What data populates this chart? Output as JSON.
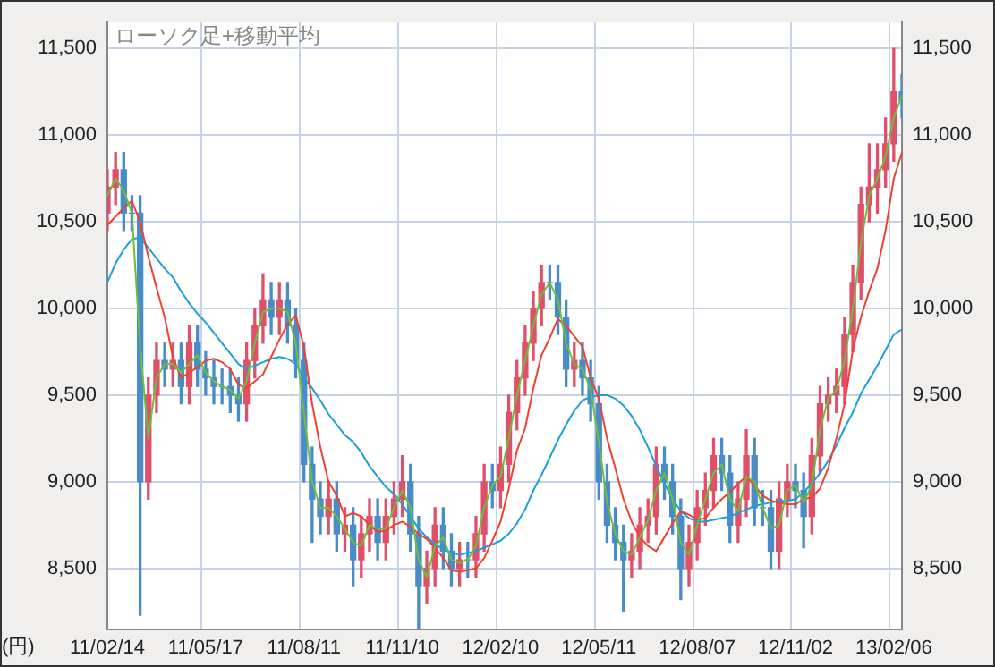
{
  "chart_data": {
    "type": "candlestick",
    "title": "ローソク足+移動平均",
    "ylabel": "(円)",
    "grid": true,
    "categories": [
      "11/02/14",
      null,
      null,
      null,
      null,
      null,
      null,
      null,
      null,
      null,
      null,
      null,
      "11/05/17",
      null,
      null,
      null,
      null,
      null,
      null,
      null,
      null,
      null,
      null,
      null,
      "11/08/11",
      null,
      null,
      null,
      null,
      null,
      null,
      null,
      null,
      null,
      null,
      null,
      "11/11/10",
      null,
      null,
      null,
      null,
      null,
      null,
      null,
      null,
      null,
      null,
      null,
      "12/02/10",
      null,
      null,
      null,
      null,
      null,
      null,
      null,
      null,
      null,
      null,
      null,
      "12/05/11",
      null,
      null,
      null,
      null,
      null,
      null,
      null,
      null,
      null,
      null,
      null,
      "12/08/07",
      null,
      null,
      null,
      null,
      null,
      null,
      null,
      null,
      null,
      null,
      null,
      "12/11/02",
      null,
      null,
      null,
      null,
      null,
      null,
      null,
      null,
      null,
      null,
      null,
      "13/02/06",
      null
    ],
    "ohlc": [
      [
        10550,
        10800,
        10450,
        10700
      ],
      [
        10700,
        10900,
        10600,
        10800
      ],
      [
        10800,
        10900,
        10450,
        10550
      ],
      [
        10550,
        10650,
        10450,
        10550
      ],
      [
        10550,
        10650,
        8230,
        9000
      ],
      [
        9000,
        9600,
        8900,
        9500
      ],
      [
        9500,
        9800,
        9400,
        9700
      ],
      [
        9700,
        9800,
        9550,
        9650
      ],
      [
        9650,
        9800,
        9550,
        9700
      ],
      [
        9700,
        9800,
        9450,
        9550
      ],
      [
        9550,
        9900,
        9450,
        9800
      ],
      [
        9800,
        9900,
        9550,
        9650
      ],
      [
        9650,
        9750,
        9500,
        9600
      ],
      [
        9600,
        9700,
        9450,
        9550
      ],
      [
        9550,
        9650,
        9450,
        9550
      ],
      [
        9550,
        9650,
        9400,
        9500
      ],
      [
        9500,
        9600,
        9350,
        9450
      ],
      [
        9450,
        9800,
        9350,
        9700
      ],
      [
        9700,
        10000,
        9600,
        9900
      ],
      [
        9900,
        10200,
        9800,
        10050
      ],
      [
        10050,
        10150,
        9850,
        9950
      ],
      [
        9950,
        10150,
        9850,
        10050
      ],
      [
        10050,
        10150,
        9800,
        9900
      ],
      [
        9900,
        10000,
        9600,
        9700
      ],
      [
        9700,
        9800,
        9000,
        9100
      ],
      [
        9100,
        9200,
        8650,
        8900
      ],
      [
        8900,
        9000,
        8700,
        8800
      ],
      [
        8800,
        9000,
        8700,
        8900
      ],
      [
        8900,
        9000,
        8600,
        8700
      ],
      [
        8700,
        8850,
        8600,
        8750
      ],
      [
        8750,
        8850,
        8400,
        8550
      ],
      [
        8550,
        8800,
        8450,
        8700
      ],
      [
        8700,
        8900,
        8600,
        8800
      ],
      [
        8800,
        8900,
        8550,
        8650
      ],
      [
        8650,
        8900,
        8550,
        8800
      ],
      [
        8800,
        9000,
        8700,
        8900
      ],
      [
        8900,
        9150,
        8800,
        9000
      ],
      [
        9000,
        9100,
        8600,
        8700
      ],
      [
        8700,
        8800,
        8150,
        8400
      ],
      [
        8400,
        8600,
        8300,
        8500
      ],
      [
        8500,
        8850,
        8400,
        8750
      ],
      [
        8750,
        8850,
        8500,
        8600
      ],
      [
        8600,
        8700,
        8400,
        8500
      ],
      [
        8500,
        8650,
        8400,
        8550
      ],
      [
        8550,
        8650,
        8450,
        8550
      ],
      [
        8550,
        8800,
        8450,
        8700
      ],
      [
        8700,
        9100,
        8600,
        9000
      ],
      [
        9000,
        9100,
        8850,
        8950
      ],
      [
        8950,
        9200,
        8850,
        9100
      ],
      [
        9100,
        9500,
        9000,
        9400
      ],
      [
        9400,
        9700,
        9300,
        9600
      ],
      [
        9600,
        9900,
        9500,
        9800
      ],
      [
        9800,
        10100,
        9700,
        10000
      ],
      [
        10000,
        10250,
        9900,
        10150
      ],
      [
        10150,
        10250,
        10050,
        10150
      ],
      [
        10150,
        10250,
        9850,
        9950
      ],
      [
        9950,
        10050,
        9550,
        9650
      ],
      [
        9650,
        9800,
        9550,
        9700
      ],
      [
        9700,
        9800,
        9500,
        9600
      ],
      [
        9600,
        9700,
        9350,
        9450
      ],
      [
        9450,
        9550,
        8900,
        9000
      ],
      [
        9000,
        9100,
        8650,
        8750
      ],
      [
        8750,
        8850,
        8550,
        8650
      ],
      [
        8650,
        8750,
        8250,
        8550
      ],
      [
        8550,
        8700,
        8450,
        8600
      ],
      [
        8600,
        8850,
        8500,
        8750
      ],
      [
        8750,
        8900,
        8650,
        8800
      ],
      [
        8800,
        9200,
        8700,
        9100
      ],
      [
        9100,
        9200,
        8900,
        9000
      ],
      [
        9000,
        9100,
        8700,
        8800
      ],
      [
        8800,
        8900,
        8320,
        8500
      ],
      [
        8500,
        8750,
        8400,
        8650
      ],
      [
        8650,
        8950,
        8550,
        8850
      ],
      [
        8850,
        9050,
        8750,
        8950
      ],
      [
        8950,
        9250,
        8850,
        9150
      ],
      [
        9150,
        9250,
        8950,
        9050
      ],
      [
        9050,
        9150,
        8650,
        8750
      ],
      [
        8750,
        9000,
        8650,
        8900
      ],
      [
        8900,
        9300,
        8800,
        9150
      ],
      [
        9150,
        9250,
        8750,
        8850
      ],
      [
        8850,
        8950,
        8750,
        8850
      ],
      [
        8850,
        8950,
        8500,
        8600
      ],
      [
        8600,
        9000,
        8500,
        8900
      ],
      [
        8900,
        9100,
        8800,
        9000
      ],
      [
        9000,
        9100,
        8850,
        8950
      ],
      [
        8950,
        9050,
        8620,
        8800
      ],
      [
        8800,
        9250,
        8700,
        9150
      ],
      [
        9150,
        9550,
        9050,
        9450
      ],
      [
        9450,
        9600,
        9350,
        9500
      ],
      [
        9500,
        9650,
        9400,
        9550
      ],
      [
        9550,
        9950,
        9450,
        9850
      ],
      [
        9850,
        10250,
        9750,
        10150
      ],
      [
        10150,
        10700,
        10050,
        10600
      ],
      [
        10600,
        10950,
        10500,
        10700
      ],
      [
        10700,
        10950,
        10550,
        10800
      ],
      [
        10800,
        11100,
        10700,
        10950
      ],
      [
        10950,
        11500,
        10850,
        11250
      ],
      [
        11250,
        11350,
        11100,
        11200
      ]
    ],
    "colors": [
      "#e0506a",
      "#e0506a",
      "#4a8cc8",
      "#4a8cc8",
      "#4a8cc8",
      "#e0506a",
      "#e0506a",
      "#4a8cc8",
      "#e0506a",
      "#4a8cc8",
      "#e0506a",
      "#4a8cc8",
      "#4a8cc8",
      "#4a8cc8",
      "#4a8cc8",
      "#4a8cc8",
      "#4a8cc8",
      "#e0506a",
      "#e0506a",
      "#e0506a",
      "#4a8cc8",
      "#e0506a",
      "#4a8cc8",
      "#4a8cc8",
      "#4a8cc8",
      "#4a8cc8",
      "#4a8cc8",
      "#e0506a",
      "#4a8cc8",
      "#e0506a",
      "#4a8cc8",
      "#e0506a",
      "#e0506a",
      "#4a8cc8",
      "#e0506a",
      "#e0506a",
      "#e0506a",
      "#4a8cc8",
      "#4a8cc8",
      "#e0506a",
      "#e0506a",
      "#4a8cc8",
      "#4a8cc8",
      "#e0506a",
      "#4a8cc8",
      "#e0506a",
      "#e0506a",
      "#4a8cc8",
      "#e0506a",
      "#e0506a",
      "#e0506a",
      "#e0506a",
      "#e0506a",
      "#e0506a",
      "#4a8cc8",
      "#4a8cc8",
      "#4a8cc8",
      "#e0506a",
      "#4a8cc8",
      "#4a8cc8",
      "#4a8cc8",
      "#4a8cc8",
      "#4a8cc8",
      "#4a8cc8",
      "#e0506a",
      "#e0506a",
      "#e0506a",
      "#e0506a",
      "#4a8cc8",
      "#4a8cc8",
      "#4a8cc8",
      "#e0506a",
      "#e0506a",
      "#e0506a",
      "#e0506a",
      "#4a8cc8",
      "#4a8cc8",
      "#e0506a",
      "#e0506a",
      "#4a8cc8",
      "#4a8cc8",
      "#4a8cc8",
      "#e0506a",
      "#e0506a",
      "#4a8cc8",
      "#4a8cc8",
      "#e0506a",
      "#e0506a",
      "#e0506a",
      "#e0506a",
      "#e0506a",
      "#e0506a",
      "#e0506a",
      "#e0506a",
      "#e0506a",
      "#e0506a",
      "#e0506a",
      "#4a8cc8"
    ],
    "series": [
      {
        "type": "line",
        "color": "#6cbf3c",
        "values": [
          10650,
          10750,
          10680,
          10550,
          9780,
          9250,
          9600,
          9680,
          9680,
          9630,
          9680,
          9730,
          9630,
          9580,
          9550,
          9530,
          9480,
          9580,
          9800,
          9980,
          10000,
          10000,
          9980,
          9800,
          9400,
          9000,
          8850,
          8850,
          8800,
          8730,
          8650,
          8630,
          8750,
          8730,
          8730,
          8850,
          8950,
          8850,
          8550,
          8450,
          8630,
          8680,
          8550,
          8530,
          8550,
          8630,
          8850,
          8980,
          9030,
          9250,
          9500,
          9700,
          9900,
          10080,
          10150,
          10050,
          9800,
          9680,
          9650,
          9530,
          9230,
          8880,
          8700,
          8600,
          8580,
          8680,
          8780,
          8950,
          9050,
          8900,
          8650,
          8580,
          8750,
          8900,
          9050,
          9100,
          8900,
          8830,
          9030,
          9000,
          8850,
          8730,
          8750,
          8950,
          8980,
          8880,
          8980,
          9300,
          9480,
          9530,
          9700,
          10000,
          10380,
          10650,
          10750,
          10880,
          11100,
          11230
        ]
      },
      {
        "type": "line",
        "color": "#f04030",
        "values": [
          10480,
          10530,
          10580,
          10620,
          10500,
          10300,
          10120,
          9950,
          9720,
          9600,
          9630,
          9660,
          9700,
          9710,
          9690,
          9650,
          9560,
          9540,
          9580,
          9620,
          9720,
          9820,
          9910,
          9960,
          9780,
          9450,
          9200,
          9000,
          8920,
          8800,
          8820,
          8800,
          8750,
          8710,
          8720,
          8750,
          8770,
          8740,
          8700,
          8670,
          8620,
          8560,
          8490,
          8480,
          8490,
          8500,
          8560,
          8660,
          8770,
          8960,
          9180,
          9310,
          9540,
          9730,
          9830,
          9940,
          9900,
          9840,
          9780,
          9600,
          9480,
          9250,
          9080,
          8900,
          8770,
          8680,
          8630,
          8600,
          8680,
          8760,
          8830,
          8810,
          8780,
          8790,
          8850,
          8900,
          8940,
          8990,
          9030,
          8980,
          8920,
          8890,
          8880,
          8870,
          8870,
          8900,
          8910,
          8960,
          9080,
          9250,
          9450,
          9760,
          9950,
          10100,
          10230,
          10450,
          10750,
          10900
        ]
      },
      {
        "type": "line",
        "color": "#1aa0d8",
        "values": [
          10150,
          10260,
          10340,
          10400,
          10410,
          10350,
          10290,
          10230,
          10180,
          10100,
          10030,
          9970,
          9920,
          9860,
          9800,
          9740,
          9680,
          9650,
          9670,
          9690,
          9710,
          9720,
          9710,
          9680,
          9600,
          9540,
          9470,
          9390,
          9330,
          9270,
          9230,
          9170,
          9090,
          9030,
          8970,
          8930,
          8870,
          8800,
          8730,
          8680,
          8640,
          8610,
          8590,
          8580,
          8590,
          8600,
          8620,
          8640,
          8660,
          8700,
          8760,
          8840,
          8950,
          9040,
          9140,
          9240,
          9330,
          9410,
          9470,
          9490,
          9500,
          9500,
          9480,
          9440,
          9380,
          9300,
          9200,
          9090,
          8990,
          8900,
          8830,
          8790,
          8770,
          8770,
          8780,
          8790,
          8800,
          8820,
          8840,
          8860,
          8870,
          8880,
          8890,
          8890,
          8900,
          8940,
          8990,
          9050,
          9120,
          9210,
          9310,
          9400,
          9510,
          9590,
          9670,
          9760,
          9850,
          9880
        ]
      }
    ],
    "ylim": [
      8150,
      11650
    ],
    "yticks": [
      {
        "value": 8500,
        "label": "8,500"
      },
      {
        "value": 9000,
        "label": "9,000"
      },
      {
        "value": 9500,
        "label": "9,500"
      },
      {
        "value": 10000,
        "label": "10,000"
      },
      {
        "value": 10500,
        "label": "10,500"
      },
      {
        "value": 11000,
        "label": "11,000"
      },
      {
        "value": 11500,
        "label": "11,500"
      }
    ],
    "y2lim": [
      8150,
      11650
    ],
    "y2ticks": [
      {
        "value": 8500,
        "label": "8,500"
      },
      {
        "value": 9000,
        "label": "9,000"
      },
      {
        "value": 9500,
        "label": "9,500"
      },
      {
        "value": 10000,
        "label": "10,000"
      },
      {
        "value": 10500,
        "label": "10,500"
      },
      {
        "value": 11000,
        "label": "11,000"
      },
      {
        "value": 11500,
        "label": "11,500"
      }
    ]
  }
}
